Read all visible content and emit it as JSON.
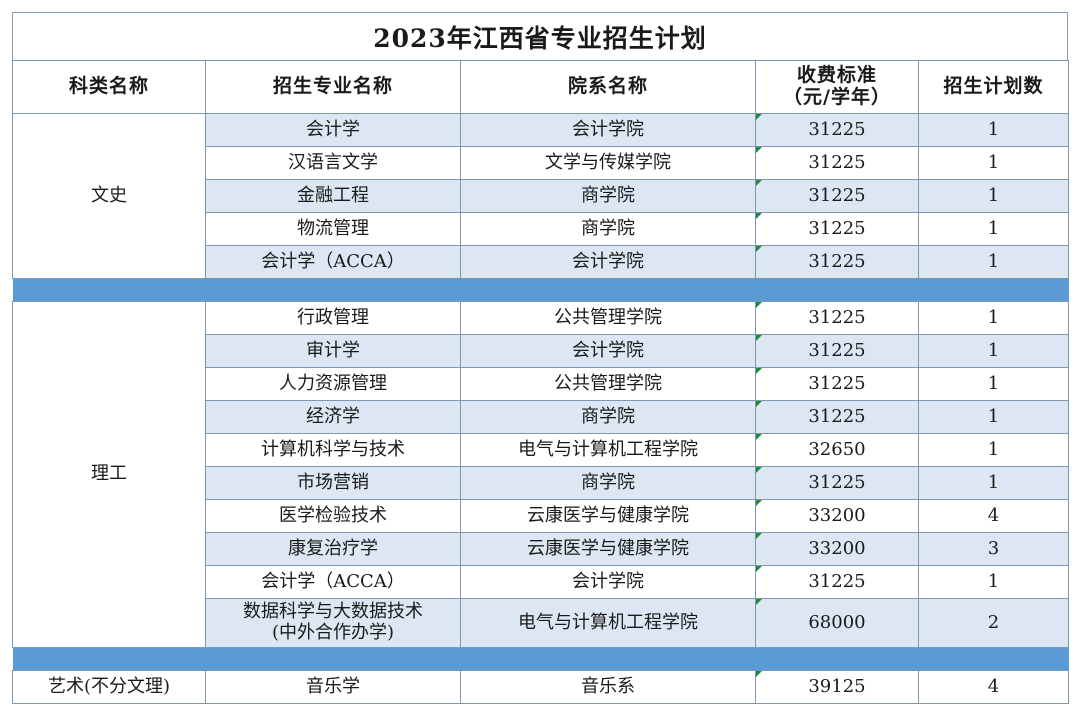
{
  "title": "2023年江西省专业招生计划",
  "headers": {
    "category": "科类名称",
    "major": "招生专业名称",
    "school": "院系名称",
    "fee_line1": "收费标准",
    "fee_line2": "（元/学年）",
    "plan": "招生计划数"
  },
  "groups": {
    "wenshi": {
      "category": "文史",
      "rows": [
        {
          "major": "会计学",
          "school": "会计学院",
          "fee": "31225",
          "plan": "1"
        },
        {
          "major": "汉语言文学",
          "school": "文学与传媒学院",
          "fee": "31225",
          "plan": "1"
        },
        {
          "major": "金融工程",
          "school": "商学院",
          "fee": "31225",
          "plan": "1"
        },
        {
          "major": "物流管理",
          "school": "商学院",
          "fee": "31225",
          "plan": "1"
        },
        {
          "major": "会计学（ACCA）",
          "school": "会计学院",
          "fee": "31225",
          "plan": "1"
        }
      ]
    },
    "ligong": {
      "category": "理工",
      "rows": [
        {
          "major": "行政管理",
          "school": "公共管理学院",
          "fee": "31225",
          "plan": "1"
        },
        {
          "major": "审计学",
          "school": "会计学院",
          "fee": "31225",
          "plan": "1"
        },
        {
          "major": "人力资源管理",
          "school": "公共管理学院",
          "fee": "31225",
          "plan": "1"
        },
        {
          "major": "经济学",
          "school": "商学院",
          "fee": "31225",
          "plan": "1"
        },
        {
          "major": "计算机科学与技术",
          "school": "电气与计算机工程学院",
          "fee": "32650",
          "plan": "1"
        },
        {
          "major": "市场营销",
          "school": "商学院",
          "fee": "31225",
          "plan": "1"
        },
        {
          "major": "医学检验技术",
          "school": "云康医学与健康学院",
          "fee": "33200",
          "plan": "4"
        },
        {
          "major": "康复治疗学",
          "school": "云康医学与健康学院",
          "fee": "33200",
          "plan": "3"
        },
        {
          "major": "会计学（ACCA）",
          "school": "会计学院",
          "fee": "31225",
          "plan": "1"
        },
        {
          "major_line1": "数据科学与大数据技术",
          "major_line2": "(中外合作办学)",
          "school": "电气与计算机工程学院",
          "fee": "68000",
          "plan": "2"
        }
      ]
    },
    "yishu": {
      "category": "艺术(不分文理)",
      "rows": [
        {
          "major": "音乐学",
          "school": "音乐系",
          "fee": "39125",
          "plan": "4"
        }
      ]
    }
  },
  "colors": {
    "row_tint": "#dce7f3",
    "separator": "#5b9bd5",
    "border": "#7f98b2",
    "cell_marker": "#1f8a3a"
  }
}
